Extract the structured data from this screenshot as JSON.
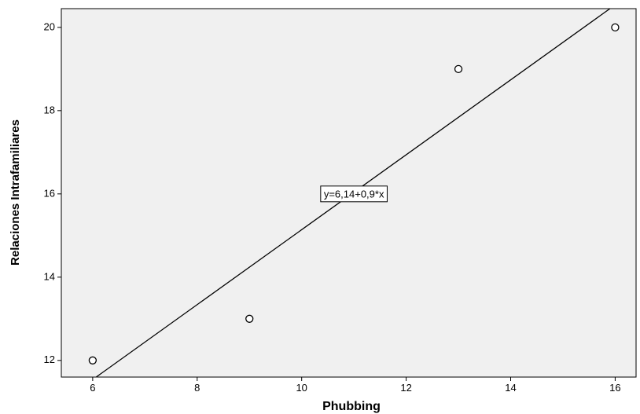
{
  "chart_data": {
    "type": "scatter",
    "xlabel": "Phubbing",
    "ylabel": "Relaciones Intrafamiliares",
    "xlim": [
      5.4,
      16.4
    ],
    "ylim": [
      11.6,
      20.45
    ],
    "xticks": [
      6,
      8,
      10,
      12,
      14,
      16
    ],
    "yticks": [
      12,
      14,
      16,
      18,
      20
    ],
    "points": [
      {
        "x": 6,
        "y": 12
      },
      {
        "x": 9,
        "y": 13
      },
      {
        "x": 13,
        "y": 19
      },
      {
        "x": 16,
        "y": 20
      }
    ],
    "fit_line": {
      "intercept": 6.14,
      "slope": 0.9
    },
    "fit_label": "y=6,14+0,9*x",
    "fit_label_position": {
      "x": 11.0,
      "y": 16.0
    },
    "grid": false,
    "colors": {
      "plot_background": "#f0f0f0",
      "line": "#000000",
      "marker_fill": "#ffffff"
    }
  }
}
